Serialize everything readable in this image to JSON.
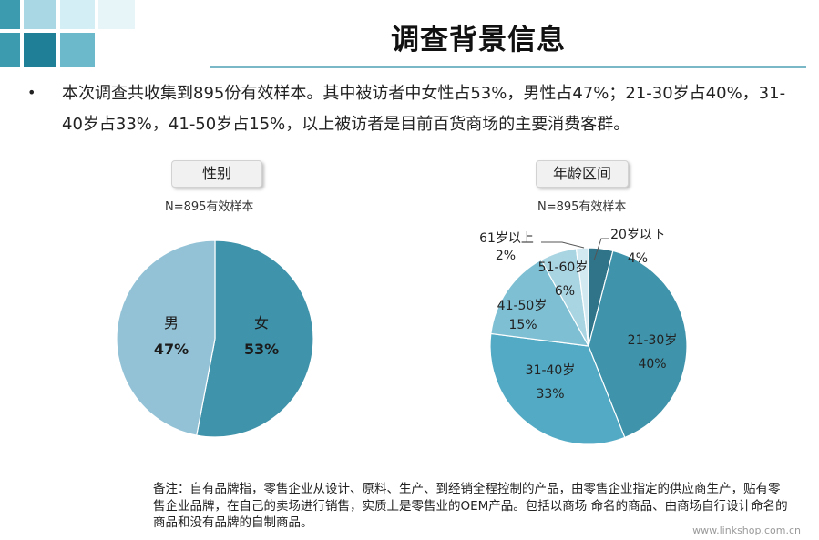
{
  "page": {
    "title": "调查背景信息",
    "intro": "本次调查共收集到895份有效样本。其中被访者中女性占53%，男性占47%；21-30岁占40%，31-40岁占33%，41-50岁占15%，以上被访者是目前百货商场的主要消费客群。",
    "note": "备注：自有品牌指，零售企业从设计、原料、生产、到经销全程控制的产品，由零售企业指定的供应商生产，贴有零售企业品牌，在自己的卖场进行销售，实质上是零售业的OEM产品。包括以商场 命名的商品、由商场自行设计命名的商品和没有品牌的自制商品。",
    "watermark": "www.linkshop.com.cn"
  },
  "colors": {
    "accent_rule": "#7ab8c8",
    "deco_teal": "#3d9bb0",
    "deco_light": "#a9d7e3",
    "deco_pale": "#d3eef5"
  },
  "chart_data": [
    {
      "type": "pie",
      "title": "性别",
      "subtitle": "N=895有效样本",
      "slices": [
        {
          "label": "女",
          "value": 53,
          "value_label": "53%",
          "color": "#3f93aa"
        },
        {
          "label": "男",
          "value": 47,
          "value_label": "47%",
          "color": "#93c2d6"
        }
      ]
    },
    {
      "type": "pie",
      "title": "年龄区间",
      "subtitle": "N=895有效样本",
      "slices": [
        {
          "label": "20岁以下",
          "value": 4,
          "value_label": "4%",
          "color": "#2f7488"
        },
        {
          "label": "21-30岁",
          "value": 40,
          "value_label": "40%",
          "color": "#3f93aa"
        },
        {
          "label": "31-40岁",
          "value": 33,
          "value_label": "33%",
          "color": "#52aac4"
        },
        {
          "label": "41-50岁",
          "value": 15,
          "value_label": "15%",
          "color": "#7ebfd3"
        },
        {
          "label": "51-60岁",
          "value": 6,
          "value_label": "6%",
          "color": "#a9d4e2"
        },
        {
          "label": "61岁以上",
          "value": 2,
          "value_label": "2%",
          "color": "#d3e9f1"
        }
      ]
    }
  ]
}
